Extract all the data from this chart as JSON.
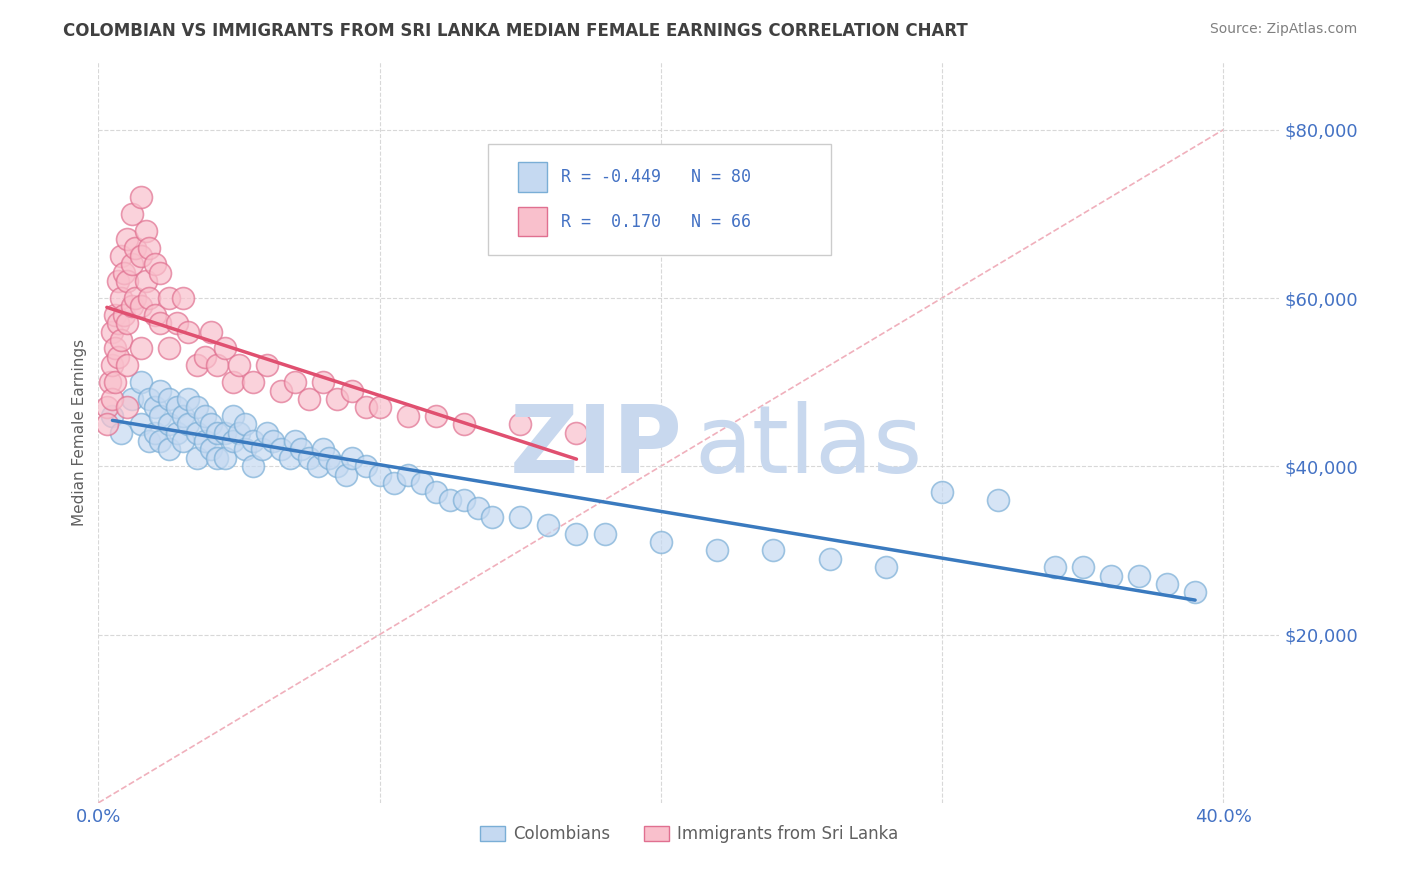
{
  "title": "COLOMBIAN VS IMMIGRANTS FROM SRI LANKA MEDIAN FEMALE EARNINGS CORRELATION CHART",
  "source": "Source: ZipAtlas.com",
  "ylabel": "Median Female Earnings",
  "xlim": [
    0.0,
    0.42
  ],
  "ylim": [
    0,
    88000
  ],
  "yticks": [
    20000,
    40000,
    60000,
    80000
  ],
  "ytick_labels": [
    "$20,000",
    "$40,000",
    "$60,000",
    "$80,000"
  ],
  "xticks": [
    0.0,
    0.4
  ],
  "xtick_labels": [
    "0.0%",
    "40.0%"
  ],
  "R_colombians": -0.449,
  "N_colombians": 80,
  "R_srilanka": 0.17,
  "N_srilanka": 66,
  "colombians_line_color": "#3a7abf",
  "srilanka_line_color": "#e05070",
  "colombians_scatter_face": "#c5d9f1",
  "colombians_scatter_edge": "#7aaed6",
  "srilanka_scatter_face": "#f9c0cc",
  "srilanka_scatter_edge": "#e07090",
  "legend_box_col_face": "#c5d9f1",
  "legend_box_col_edge": "#7aaed6",
  "legend_box_sri_face": "#f9c0cc",
  "legend_box_sri_edge": "#e07090",
  "background_color": "#ffffff",
  "grid_color": "#d8d8d8",
  "title_color": "#404040",
  "ylabel_color": "#606060",
  "tick_label_color": "#4472c4",
  "watermark_zip_color": "#c8d8ee",
  "watermark_atlas_color": "#c8d8ee",
  "source_color": "#808080",
  "dashed_line_color": "#f0b0bc",
  "colombians_x": [
    0.005,
    0.008,
    0.012,
    0.015,
    0.015,
    0.018,
    0.018,
    0.02,
    0.02,
    0.022,
    0.022,
    0.022,
    0.025,
    0.025,
    0.025,
    0.028,
    0.028,
    0.03,
    0.03,
    0.032,
    0.032,
    0.035,
    0.035,
    0.035,
    0.038,
    0.038,
    0.04,
    0.04,
    0.042,
    0.042,
    0.045,
    0.045,
    0.048,
    0.048,
    0.05,
    0.052,
    0.052,
    0.055,
    0.055,
    0.058,
    0.06,
    0.062,
    0.065,
    0.068,
    0.07,
    0.072,
    0.075,
    0.078,
    0.08,
    0.082,
    0.085,
    0.088,
    0.09,
    0.095,
    0.1,
    0.105,
    0.11,
    0.115,
    0.12,
    0.125,
    0.13,
    0.135,
    0.14,
    0.15,
    0.16,
    0.17,
    0.18,
    0.2,
    0.22,
    0.24,
    0.26,
    0.28,
    0.3,
    0.32,
    0.34,
    0.35,
    0.36,
    0.37,
    0.38,
    0.39
  ],
  "colombians_y": [
    46000,
    44000,
    48000,
    50000,
    45000,
    48000,
    43000,
    47000,
    44000,
    49000,
    46000,
    43000,
    48000,
    45000,
    42000,
    47000,
    44000,
    46000,
    43000,
    48000,
    45000,
    47000,
    44000,
    41000,
    46000,
    43000,
    45000,
    42000,
    44000,
    41000,
    44000,
    41000,
    46000,
    43000,
    44000,
    45000,
    42000,
    43000,
    40000,
    42000,
    44000,
    43000,
    42000,
    41000,
    43000,
    42000,
    41000,
    40000,
    42000,
    41000,
    40000,
    39000,
    41000,
    40000,
    39000,
    38000,
    39000,
    38000,
    37000,
    36000,
    36000,
    35000,
    34000,
    34000,
    33000,
    32000,
    32000,
    31000,
    30000,
    30000,
    29000,
    28000,
    37000,
    36000,
    28000,
    28000,
    27000,
    27000,
    26000,
    25000
  ],
  "srilanka_x": [
    0.003,
    0.003,
    0.004,
    0.005,
    0.005,
    0.005,
    0.006,
    0.006,
    0.006,
    0.007,
    0.007,
    0.007,
    0.008,
    0.008,
    0.008,
    0.009,
    0.009,
    0.01,
    0.01,
    0.01,
    0.01,
    0.01,
    0.012,
    0.012,
    0.012,
    0.013,
    0.013,
    0.015,
    0.015,
    0.015,
    0.015,
    0.017,
    0.017,
    0.018,
    0.018,
    0.02,
    0.02,
    0.022,
    0.022,
    0.025,
    0.025,
    0.028,
    0.03,
    0.032,
    0.035,
    0.038,
    0.04,
    0.042,
    0.045,
    0.048,
    0.05,
    0.055,
    0.06,
    0.065,
    0.07,
    0.075,
    0.08,
    0.085,
    0.09,
    0.095,
    0.1,
    0.11,
    0.12,
    0.13,
    0.15,
    0.17
  ],
  "srilanka_y": [
    47000,
    45000,
    50000,
    56000,
    52000,
    48000,
    58000,
    54000,
    50000,
    62000,
    57000,
    53000,
    65000,
    60000,
    55000,
    63000,
    58000,
    67000,
    62000,
    57000,
    52000,
    47000,
    70000,
    64000,
    59000,
    66000,
    60000,
    72000,
    65000,
    59000,
    54000,
    68000,
    62000,
    66000,
    60000,
    64000,
    58000,
    63000,
    57000,
    60000,
    54000,
    57000,
    60000,
    56000,
    52000,
    53000,
    56000,
    52000,
    54000,
    50000,
    52000,
    50000,
    52000,
    49000,
    50000,
    48000,
    50000,
    48000,
    49000,
    47000,
    47000,
    46000,
    46000,
    45000,
    45000,
    44000
  ]
}
